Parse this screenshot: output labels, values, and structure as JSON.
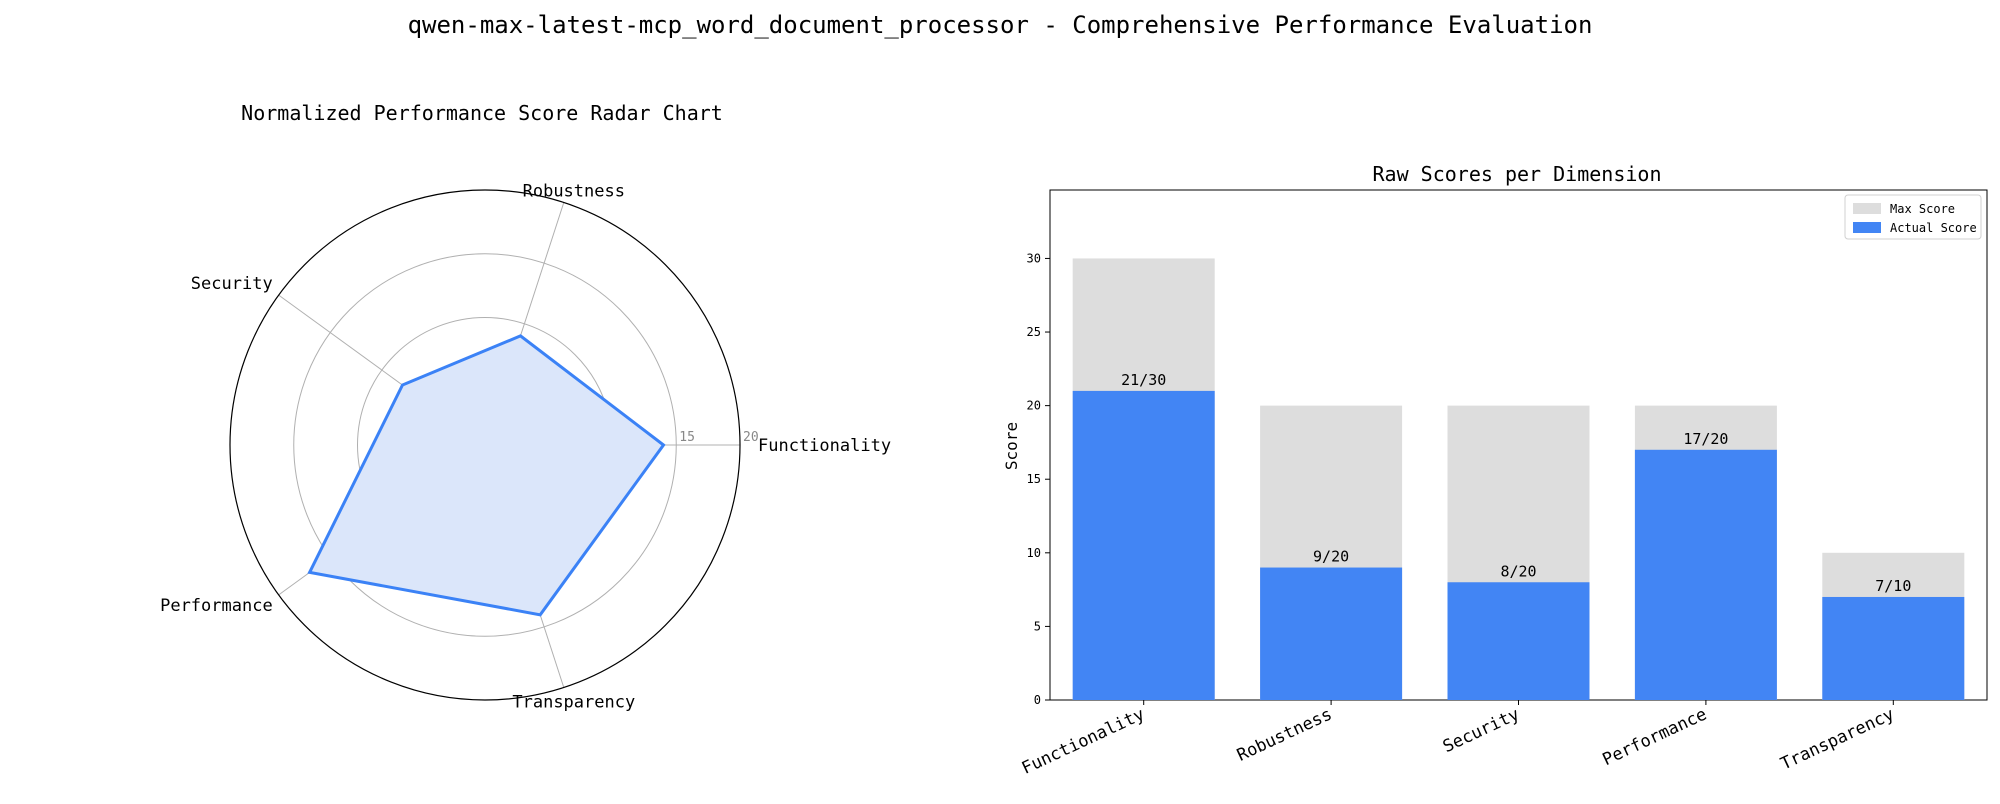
{
  "figure": {
    "title": "qwen-max-latest-mcp_word_document_processor - Comprehensive Performance Evaluation"
  },
  "chart_data": [
    {
      "type": "radar",
      "title": "Normalized Performance Score Radar Chart",
      "axes": [
        "Functionality",
        "Robustness",
        "Security",
        "Performance",
        "Transparency"
      ],
      "values": [
        14,
        9,
        8,
        17,
        14
      ],
      "rlim": [
        0,
        20
      ],
      "rticks": [
        5,
        10,
        15,
        20
      ],
      "grid": true,
      "color": "#3b82f6",
      "fill_color": "#dbe6fa"
    },
    {
      "type": "bar",
      "title": "Raw Scores per Dimension",
      "xlabel": "",
      "ylabel": "Score",
      "categories": [
        "Functionality",
        "Robustness",
        "Security",
        "Performance",
        "Transparency"
      ],
      "series": [
        {
          "name": "Max Score",
          "values": [
            30,
            20,
            20,
            20,
            10
          ],
          "color": "#dddddd"
        },
        {
          "name": "Actual Score",
          "values": [
            21,
            9,
            8,
            17,
            7
          ],
          "color": "#4285f4"
        }
      ],
      "data_labels": [
        "21/30",
        "9/20",
        "8/20",
        "17/20",
        "7/10"
      ],
      "ylim": [
        0,
        34.65
      ],
      "yticks": [
        0,
        5,
        10,
        15,
        20,
        25,
        30
      ],
      "grid": false,
      "legend_placement": "top-right"
    }
  ]
}
